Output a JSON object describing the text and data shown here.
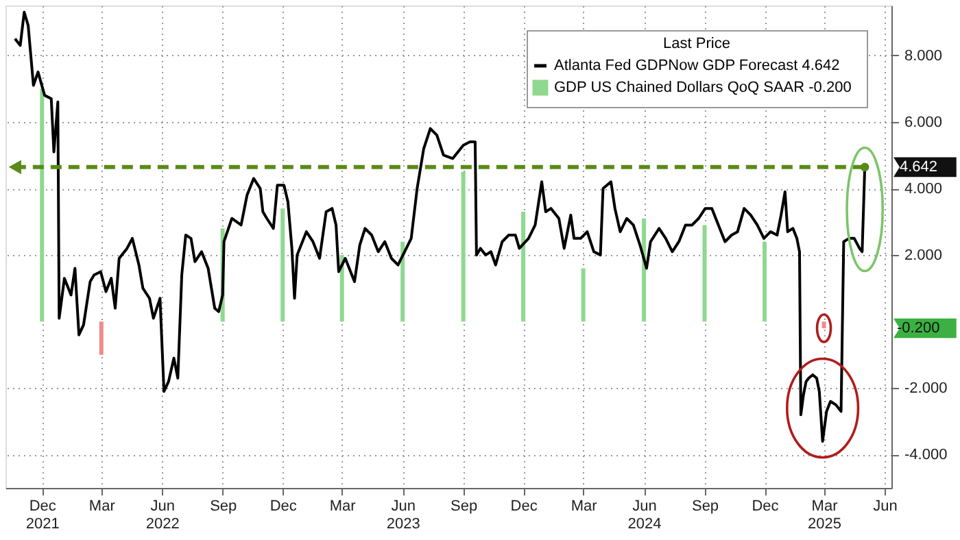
{
  "chart_data": {
    "type": "line",
    "legend_title": "Last Price",
    "legend": "top right",
    "grid": true,
    "x": [
      "2021-10-21",
      "2021-10-29",
      "2021-11-04",
      "2021-11-10",
      "2021-11-18",
      "2021-11-25",
      "2021-12-05",
      "2021-12-15",
      "2021-12-19",
      "2021-12-25",
      "2021-12-27",
      "2022-01-04",
      "2022-01-14",
      "2022-01-20",
      "2022-01-26",
      "2022-02-02",
      "2022-02-12",
      "2022-02-18",
      "2022-02-28",
      "2022-03-08",
      "2022-03-16",
      "2022-03-22",
      "2022-03-28",
      "2022-04-09",
      "2022-04-17",
      "2022-04-27",
      "2022-05-03",
      "2022-05-13",
      "2022-05-19",
      "2022-05-29",
      "2022-06-04",
      "2022-06-11",
      "2022-06-19",
      "2022-06-25",
      "2022-07-01",
      "2022-07-07",
      "2022-07-15",
      "2022-07-21",
      "2022-07-31",
      "2022-08-10",
      "2022-08-20",
      "2022-08-26",
      "2022-09-01",
      "2022-09-03",
      "2022-09-15",
      "2022-09-29",
      "2022-10-08",
      "2022-10-18",
      "2022-10-28",
      "2022-11-01",
      "2022-11-07",
      "2022-11-17",
      "2022-11-23",
      "2022-12-03",
      "2022-12-09",
      "2022-12-15",
      "2022-12-19",
      "2022-12-23",
      "2023-01-06",
      "2023-01-16",
      "2023-01-26",
      "2023-02-05",
      "2023-02-14",
      "2023-02-20",
      "2023-02-24",
      "2023-03-06",
      "2023-03-20",
      "2023-03-28",
      "2023-04-05",
      "2023-04-15",
      "2023-04-25",
      "2023-05-05",
      "2023-05-15",
      "2023-05-25",
      "2023-06-04",
      "2023-06-14",
      "2023-06-23",
      "2023-07-03",
      "2023-07-13",
      "2023-07-23",
      "2023-08-02",
      "2023-08-16",
      "2023-09-01",
      "2023-09-11",
      "2023-09-19",
      "2023-09-21",
      "2023-09-27",
      "2023-10-05",
      "2023-10-13",
      "2023-10-20",
      "2023-10-30",
      "2023-11-09",
      "2023-11-19",
      "2023-11-25",
      "2023-12-09",
      "2023-12-19",
      "2023-12-29",
      "2024-01-04",
      "2024-01-12",
      "2024-01-24",
      "2024-02-01",
      "2024-02-11",
      "2024-02-16",
      "2024-02-26",
      "2024-03-07",
      "2024-03-17",
      "2024-03-27",
      "2024-03-31",
      "2024-04-12",
      "2024-04-18",
      "2024-04-26",
      "2024-05-06",
      "2024-05-16",
      "2024-05-26",
      "2024-06-05",
      "2024-06-11",
      "2024-06-24",
      "2024-07-04",
      "2024-07-14",
      "2024-07-24",
      "2024-08-03",
      "2024-08-13",
      "2024-08-23",
      "2024-09-02",
      "2024-09-12",
      "2024-09-22",
      "2024-10-02",
      "2024-10-12",
      "2024-10-21",
      "2024-10-31",
      "2024-11-10",
      "2024-11-20",
      "2024-11-30",
      "2024-12-10",
      "2024-12-20",
      "2024-12-26",
      "2025-01-01",
      "2025-01-05",
      "2025-01-13",
      "2025-01-19",
      "2025-01-23",
      "2025-01-25",
      "2025-01-29",
      "2025-02-02",
      "2025-02-06",
      "2025-02-12",
      "2025-02-18",
      "2025-02-22",
      "2025-02-27",
      "2025-03-05",
      "2025-03-11",
      "2025-03-19",
      "2025-03-27",
      "2025-03-31",
      "2025-04-08",
      "2025-04-16",
      "2025-04-24",
      "2025-04-28",
      "2025-05-02"
    ],
    "xlim": [
      "2021-10-17",
      "2025-06-01"
    ],
    "xticks": [
      {
        "value": "2021-12-01",
        "label": "Dec 2021"
      },
      {
        "value": "2022-03-01",
        "label": "Mar"
      },
      {
        "value": "2022-06-01",
        "label": "Jun 2022"
      },
      {
        "value": "2022-09-01",
        "label": "Sep"
      },
      {
        "value": "2022-12-01",
        "label": "Dec"
      },
      {
        "value": "2023-03-01",
        "label": "Mar"
      },
      {
        "value": "2023-06-01",
        "label": "Jun 2023"
      },
      {
        "value": "2023-09-01",
        "label": "Sep"
      },
      {
        "value": "2023-12-01",
        "label": "Dec"
      },
      {
        "value": "2024-03-01",
        "label": "Mar"
      },
      {
        "value": "2024-06-01",
        "label": "Jun 2024"
      },
      {
        "value": "2024-09-01",
        "label": "Sep"
      },
      {
        "value": "2024-12-01",
        "label": "Dec"
      },
      {
        "value": "2025-03-01",
        "label": "Mar 2025"
      },
      {
        "value": "2025-06-01",
        "label": "Jun"
      }
    ],
    "ylim": [
      -5,
      9.5
    ],
    "yticks": [
      {
        "value": -4,
        "label": "-4.000"
      },
      {
        "value": -2,
        "label": "-2.000"
      },
      {
        "value": 2,
        "label": "2.000"
      },
      {
        "value": 4,
        "label": "4.000"
      },
      {
        "value": 6,
        "label": "6.000"
      },
      {
        "value": 8,
        "label": "8.000"
      }
    ],
    "series": [
      {
        "name": "Atlanta Fed GDPNow GDP Forecast   4.642",
        "color": "#000000",
        "values": [
          8.5,
          8.3,
          9.3,
          8.9,
          7.1,
          7.5,
          6.8,
          6.7,
          5.1,
          6.6,
          0.1,
          1.3,
          0.8,
          1.6,
          -0.4,
          -0.1,
          1.2,
          1.4,
          1.5,
          0.9,
          1.3,
          0.4,
          1.9,
          2.2,
          2.5,
          1.7,
          1.0,
          0.7,
          0.1,
          0.7,
          -2.1,
          -1.8,
          -1.1,
          -1.7,
          1.4,
          2.6,
          2.5,
          1.8,
          2.1,
          1.6,
          0.4,
          0.3,
          0.8,
          2.4,
          3.1,
          2.9,
          3.8,
          4.3,
          4.0,
          3.3,
          3.1,
          2.8,
          4.1,
          4.1,
          3.6,
          2.2,
          0.7,
          2.0,
          2.7,
          2.4,
          1.9,
          3.3,
          3.4,
          2.9,
          1.5,
          1.9,
          1.2,
          2.3,
          2.8,
          2.6,
          2.1,
          2.4,
          1.9,
          1.7,
          2.1,
          2.5,
          4.0,
          5.2,
          5.8,
          5.6,
          5.0,
          4.9,
          5.3,
          5.4,
          5.4,
          2.0,
          2.2,
          2.0,
          2.1,
          1.7,
          2.4,
          2.6,
          2.6,
          2.2,
          2.5,
          2.9,
          4.2,
          3.3,
          3.4,
          3.1,
          2.2,
          3.2,
          2.5,
          2.5,
          2.7,
          2.1,
          2.0,
          4.0,
          4.2,
          3.4,
          2.7,
          3.1,
          2.9,
          2.3,
          1.6,
          2.4,
          2.8,
          2.5,
          2.1,
          2.4,
          2.9,
          2.9,
          3.1,
          3.4,
          3.4,
          2.9,
          2.4,
          2.6,
          2.7,
          3.4,
          3.2,
          2.9,
          2.5,
          2.7,
          2.6,
          3.2,
          3.9,
          2.7,
          2.8,
          2.5,
          2.1,
          -2.8,
          -2.2,
          -1.8,
          -1.7,
          -1.6,
          -1.7,
          -2.1,
          -3.6,
          -2.7,
          -2.4,
          -2.5,
          -2.7,
          2.4,
          2.5,
          2.5,
          2.2,
          2.1,
          4.642
        ]
      },
      {
        "name": "GDP US Chained Dollars QoQ SAAR   -0.200",
        "type": "bar",
        "color": "#8fd88f",
        "x": [
          "2021-12-01",
          "2022-03-01",
          "2022-09-01",
          "2022-12-01",
          "2023-03-01",
          "2023-06-01",
          "2023-09-01",
          "2023-12-01",
          "2024-03-01",
          "2024-06-01",
          "2024-09-01",
          "2024-12-01",
          "2025-03-01"
        ],
        "values": [
          7.0,
          -1.0,
          2.8,
          3.4,
          2.0,
          2.4,
          4.5,
          3.3,
          1.6,
          3.1,
          2.9,
          2.4,
          -0.2
        ],
        "colors": [
          "#8fd88f",
          "#f08a8a",
          "#8fd88f",
          "#8fd88f",
          "#8fd88f",
          "#8fd88f",
          "#8fd88f",
          "#8fd88f",
          "#8fd88f",
          "#8fd88f",
          "#8fd88f",
          "#8fd88f",
          "#f08a8a"
        ]
      }
    ],
    "ref_lines": [
      {
        "axis": "y",
        "value": 4.642,
        "label": "4.642",
        "color": "#5a8a1a",
        "line_style": "dashed"
      }
    ],
    "annotations": [
      "-0.200"
    ]
  }
}
